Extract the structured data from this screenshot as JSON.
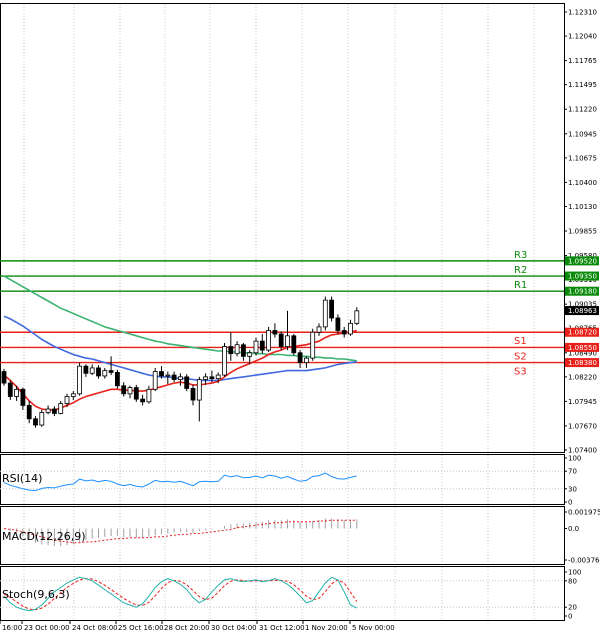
{
  "chart_data": {
    "type": "candlestick",
    "instrument_hint": "",
    "main": {
      "ylim": [
        1.074,
        1.1231
      ],
      "y_ticks": [
        "1.12310",
        "1.12040",
        "1.11765",
        "1.11495",
        "1.11220",
        "1.10945",
        "1.10675",
        "1.10400",
        "1.10130",
        "1.09855",
        "1.09580",
        "1.09310",
        "1.09035",
        "1.08765",
        "1.08490",
        "1.08220",
        "1.07945",
        "1.07670",
        "1.07400"
      ],
      "levels": [
        {
          "name": "R3",
          "value": 1.0952,
          "label": "1.09520"
        },
        {
          "name": "R2",
          "value": 1.0935,
          "label": "1.09350"
        },
        {
          "name": "R1",
          "value": 1.0918,
          "label": "1.09180"
        },
        {
          "name": "S1",
          "value": 1.0872,
          "label": "1.08720"
        },
        {
          "name": "S2",
          "value": 1.0855,
          "label": "1.08550"
        },
        {
          "name": "S3",
          "value": 1.0838,
          "label": "1.08380"
        }
      ],
      "current_price": {
        "value": 1.08963,
        "label": "1.08963"
      },
      "candles": [
        [
          1.0828,
          1.0831,
          1.0812,
          1.0815
        ],
        [
          1.0815,
          1.0818,
          1.0796,
          1.08
        ],
        [
          1.08,
          1.0812,
          1.0795,
          1.0808
        ],
        [
          1.0808,
          1.081,
          1.0785,
          1.079
        ],
        [
          1.079,
          1.0795,
          1.077,
          1.0775
        ],
        [
          1.0775,
          1.0778,
          1.0765,
          1.0768
        ],
        [
          1.0768,
          1.0785,
          1.0766,
          1.0782
        ],
        [
          1.0782,
          1.079,
          1.078,
          1.0786
        ],
        [
          1.0786,
          1.0789,
          1.0778,
          1.0781
        ],
        [
          1.0781,
          1.0795,
          1.078,
          1.0792
        ],
        [
          1.0792,
          1.0803,
          1.0788,
          1.08
        ],
        [
          1.08,
          1.0806,
          1.0796,
          1.0803
        ],
        [
          1.0803,
          1.0838,
          1.0801,
          1.0834
        ],
        [
          1.0834,
          1.0836,
          1.0822,
          1.0826
        ],
        [
          1.0826,
          1.0836,
          1.0824,
          1.0832
        ],
        [
          1.0832,
          1.0835,
          1.082,
          1.0823
        ],
        [
          1.0823,
          1.0832,
          1.082,
          1.0829
        ],
        [
          1.0829,
          1.0845,
          1.0824,
          1.0827
        ],
        [
          1.0827,
          1.083,
          1.0809,
          1.0812
        ],
        [
          1.0812,
          1.0816,
          1.08,
          1.0803
        ],
        [
          1.0803,
          1.0812,
          1.0798,
          1.081
        ],
        [
          1.081,
          1.0813,
          1.0794,
          1.0797
        ],
        [
          1.0797,
          1.0802,
          1.079,
          1.0794
        ],
        [
          1.0794,
          1.0812,
          1.0792,
          1.0808
        ],
        [
          1.0808,
          1.0832,
          1.0806,
          1.0828
        ],
        [
          1.0828,
          1.0834,
          1.082,
          1.0823
        ],
        [
          1.0823,
          1.0828,
          1.0814,
          1.0824
        ],
        [
          1.0824,
          1.0828,
          1.0816,
          1.0819
        ],
        [
          1.0819,
          1.0826,
          1.0812,
          1.0822
        ],
        [
          1.0822,
          1.0825,
          1.0806,
          1.0809
        ],
        [
          1.0809,
          1.0813,
          1.079,
          1.0796
        ],
        [
          1.0796,
          1.0822,
          1.0772,
          1.0819
        ],
        [
          1.0819,
          1.0826,
          1.0813,
          1.0822
        ],
        [
          1.0822,
          1.0829,
          1.0816,
          1.082
        ],
        [
          1.082,
          1.0827,
          1.0815,
          1.0824
        ],
        [
          1.0824,
          1.086,
          1.0822,
          1.0856
        ],
        [
          1.0856,
          1.0872,
          1.084,
          1.0848
        ],
        [
          1.0848,
          1.0862,
          1.0845,
          1.0858
        ],
        [
          1.0858,
          1.086,
          1.084,
          1.0845
        ],
        [
          1.0845,
          1.0852,
          1.0836,
          1.0849
        ],
        [
          1.0849,
          1.0866,
          1.0846,
          1.0862
        ],
        [
          1.0862,
          1.087,
          1.0848,
          1.0852
        ],
        [
          1.0852,
          1.0878,
          1.085,
          1.0874
        ],
        [
          1.0874,
          1.0882,
          1.0866,
          1.087
        ],
        [
          1.087,
          1.0873,
          1.0852,
          1.0856
        ],
        [
          1.0856,
          1.0896,
          1.0852,
          1.0868
        ],
        [
          1.0868,
          1.087,
          1.0846,
          1.0849
        ],
        [
          1.0849,
          1.0852,
          1.0832,
          1.0838
        ],
        [
          1.0838,
          1.0845,
          1.0832,
          1.0843
        ],
        [
          1.0843,
          1.0876,
          1.084,
          1.0872
        ],
        [
          1.0872,
          1.0882,
          1.0868,
          1.0878
        ],
        [
          1.0878,
          1.0912,
          1.0874,
          1.0908
        ],
        [
          1.0908,
          1.0912,
          1.0884,
          1.0888
        ],
        [
          1.0888,
          1.0892,
          1.087,
          1.0874
        ],
        [
          1.0874,
          1.0878,
          1.0866,
          1.087
        ],
        [
          1.087,
          1.0886,
          1.0868,
          1.0882
        ],
        [
          1.0882,
          1.09,
          1.088,
          1.0896
        ]
      ],
      "sma_red": [
        1.0824,
        1.0818,
        1.0811,
        1.0803,
        1.0795,
        1.0789,
        1.0786,
        1.0785,
        1.0785,
        1.0787,
        1.079,
        1.0793,
        1.0797,
        1.08,
        1.0802,
        1.0804,
        1.0806,
        1.0808,
        1.0808,
        1.0807,
        1.0807,
        1.0806,
        1.0806,
        1.0807,
        1.0809,
        1.0811,
        1.0813,
        1.0815,
        1.0816,
        1.0815,
        1.0813,
        1.0813,
        1.0814,
        1.0815,
        1.0817,
        1.0822,
        1.0827,
        1.0831,
        1.0834,
        1.0837,
        1.084,
        1.0843,
        1.0847,
        1.085,
        1.0852,
        1.0855,
        1.0856,
        1.0857,
        1.0858,
        1.086,
        1.0862,
        1.0866,
        1.0869,
        1.087,
        1.0871,
        1.0872,
        1.0874
      ],
      "sma_blue": [
        1.089,
        1.0887,
        1.0883,
        1.0879,
        1.0874,
        1.0869,
        1.0864,
        1.086,
        1.0856,
        1.0853,
        1.085,
        1.0847,
        1.0845,
        1.0843,
        1.0842,
        1.084,
        1.0838,
        1.0836,
        1.0834,
        1.0832,
        1.083,
        1.0828,
        1.0826,
        1.0824,
        1.0823,
        1.0822,
        1.0822,
        1.0821,
        1.082,
        1.082,
        1.0819,
        1.0818,
        1.0818,
        1.0818,
        1.0818,
        1.0819,
        1.082,
        1.0821,
        1.0822,
        1.0823,
        1.0824,
        1.0825,
        1.0826,
        1.0827,
        1.0828,
        1.0829,
        1.0829,
        1.0829,
        1.0829,
        1.083,
        1.0831,
        1.0832,
        1.0834,
        1.0836,
        1.0837,
        1.0838,
        1.0839
      ],
      "sma_green": [
        1.0935,
        1.0931,
        1.0927,
        1.0923,
        1.0919,
        1.0915,
        1.0911,
        1.0907,
        1.0903,
        1.0899,
        1.0896,
        1.0893,
        1.089,
        1.0887,
        1.0884,
        1.0881,
        1.0878,
        1.0876,
        1.0874,
        1.0872,
        1.087,
        1.0868,
        1.0866,
        1.0864,
        1.0862,
        1.0861,
        1.0859,
        1.0858,
        1.0857,
        1.0856,
        1.0855,
        1.0854,
        1.0853,
        1.0852,
        1.0851,
        1.0851,
        1.085,
        1.085,
        1.0849,
        1.0849,
        1.0848,
        1.0848,
        1.0847,
        1.0847,
        1.0847,
        1.0846,
        1.0846,
        1.0845,
        1.0845,
        1.0844,
        1.0844,
        1.0843,
        1.0843,
        1.0842,
        1.0842,
        1.0841,
        1.084
      ]
    },
    "rsi": {
      "label": "RSI(14)",
      "ylim": [
        0,
        100
      ],
      "y_ticks": [
        "100",
        "70",
        "30",
        "0"
      ],
      "values": [
        44,
        38,
        34,
        30,
        27,
        26,
        31,
        33,
        32,
        36,
        39,
        41,
        52,
        48,
        50,
        46,
        49,
        47,
        41,
        37,
        40,
        36,
        34,
        41,
        49,
        46,
        47,
        45,
        47,
        42,
        37,
        46,
        47,
        46,
        47,
        61,
        57,
        60,
        55,
        56,
        59,
        55,
        61,
        59,
        54,
        58,
        52,
        47,
        49,
        58,
        60,
        66,
        58,
        53,
        52,
        56,
        59
      ]
    },
    "macd": {
      "label": "MACD(12,26,9)",
      "y_ticks": [
        "0.001975",
        "0.0",
        "-0.003764"
      ],
      "histogram": [
        0,
        -0.0003,
        -0.0006,
        -0.0009,
        -0.0013,
        -0.0017,
        -0.0019,
        -0.002,
        -0.0021,
        -0.0021,
        -0.002,
        -0.0019,
        -0.0016,
        -0.0014,
        -0.0012,
        -0.0011,
        -0.001,
        -0.0009,
        -0.0009,
        -0.001,
        -0.001,
        -0.0011,
        -0.0011,
        -0.001,
        -0.0008,
        -0.0007,
        -0.0006,
        -0.0005,
        -0.0004,
        -0.0004,
        -0.0005,
        -0.0003,
        -0.0002,
        -0.0001,
        0.0,
        0.0003,
        0.0005,
        0.0006,
        0.0006,
        0.0007,
        0.0008,
        0.0008,
        0.001,
        0.001,
        0.001,
        0.0011,
        0.001,
        0.0008,
        0.0008,
        0.0009,
        0.001,
        0.0012,
        0.0012,
        0.0011,
        0.001,
        0.001,
        0.0011
      ],
      "signal": [
        0,
        -0.0001,
        -0.0002,
        -0.0004,
        -0.0006,
        -0.0008,
        -0.001,
        -0.0012,
        -0.0014,
        -0.0015,
        -0.0016,
        -0.0017,
        -0.0017,
        -0.0016,
        -0.0016,
        -0.0015,
        -0.0014,
        -0.0013,
        -0.0012,
        -0.0012,
        -0.0011,
        -0.0011,
        -0.0011,
        -0.0011,
        -0.001,
        -0.001,
        -0.0009,
        -0.0008,
        -0.0007,
        -0.0007,
        -0.0006,
        -0.0006,
        -0.0005,
        -0.0004,
        -0.0003,
        -0.0002,
        -0.0001,
        0.0001,
        0.0002,
        0.0003,
        0.0004,
        0.0005,
        0.0006,
        0.0007,
        0.0007,
        0.0008,
        0.0008,
        0.0008,
        0.0008,
        0.0008,
        0.0009,
        0.0009,
        0.001,
        0.001,
        0.001,
        0.001,
        0.001
      ]
    },
    "stoch": {
      "label": "Stoch(9,6,3)",
      "ylim": [
        0,
        100
      ],
      "y_ticks": [
        "100",
        "80",
        "20",
        "0"
      ],
      "k": [
        45,
        30,
        20,
        15,
        12,
        15,
        25,
        40,
        55,
        65,
        75,
        82,
        88,
        85,
        80,
        70,
        60,
        50,
        40,
        30,
        25,
        20,
        28,
        45,
        65,
        78,
        85,
        80,
        72,
        60,
        42,
        30,
        38,
        55,
        70,
        82,
        85,
        80,
        78,
        80,
        82,
        78,
        80,
        85,
        80,
        72,
        60,
        45,
        30,
        35,
        55,
        75,
        88,
        82,
        55,
        25,
        18
      ],
      "d": [
        50,
        42,
        32,
        22,
        16,
        14,
        18,
        27,
        40,
        53,
        65,
        74,
        82,
        85,
        84,
        78,
        70,
        60,
        50,
        40,
        32,
        25,
        24,
        31,
        46,
        63,
        76,
        81,
        79,
        71,
        58,
        44,
        37,
        41,
        54,
        69,
        79,
        82,
        81,
        79,
        80,
        80,
        80,
        81,
        81,
        79,
        71,
        59,
        45,
        37,
        40,
        55,
        73,
        82,
        75,
        54,
        33
      ]
    },
    "x_labels": [
      "16:00",
      "23 Oct 00:00",
      "24 Oct 08:00",
      "25 Oct 16:00",
      "28 Oct 20:00",
      "30 Oct 04:00",
      "31 Oct 12:00",
      "1 Nov 20:00",
      "5 Nov 00:00"
    ]
  }
}
